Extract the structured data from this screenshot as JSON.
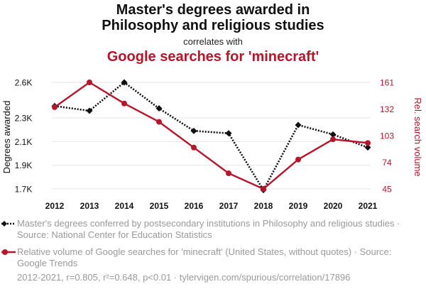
{
  "titles": {
    "line1": "Master's degrees awarded in",
    "line2": "Philosophy and religious studies",
    "connector": "correlates with",
    "line3": "Google searches for 'minecraft'"
  },
  "chart_data": {
    "type": "line",
    "x": [
      2012,
      2013,
      2014,
      2015,
      2016,
      2017,
      2018,
      2019,
      2020,
      2021
    ],
    "series": [
      {
        "name": "Master's degrees conferred by postsecondary institutions in Philosophy and religious studies · Source: National Center for Education Statistics",
        "axis": "left",
        "values": [
          2400,
          2360,
          2600,
          2380,
          2190,
          2170,
          1690,
          2240,
          2160,
          2050
        ],
        "color": "#111111",
        "style": "dotted",
        "marker": "diamond"
      },
      {
        "name": "Relative volume of Google searches for 'minecraft' (United States, without quotes) · Source: Google Trends",
        "axis": "right",
        "values": [
          134,
          161,
          138,
          118,
          90,
          62,
          45,
          77,
          99,
          95
        ],
        "color": "#b5162b",
        "style": "solid",
        "marker": "circle"
      }
    ],
    "left_axis": {
      "label": "Degrees awarded",
      "ticks": [
        1700,
        1900,
        2100,
        2300,
        2600
      ],
      "tick_labels": [
        "1.7K",
        "1.9K",
        "2.1K",
        "2.3K",
        "2.6K"
      ]
    },
    "right_axis": {
      "label": "Rel. search volume",
      "ticks": [
        45,
        74,
        103,
        132,
        161
      ],
      "tick_labels": [
        "45",
        "74",
        "103",
        "132",
        "161"
      ]
    },
    "x_tick_labels": [
      "2012",
      "2013",
      "2014",
      "2015",
      "2016",
      "2017",
      "2018",
      "2019",
      "2020",
      "2021"
    ],
    "grid": true
  },
  "legend": {
    "item1": "Master's degrees conferred by postsecondary institutions in Philosophy and religious studies · Source: National Center for Education Statistics",
    "item2": "Relative volume of Google searches for 'minecraft' (United States, without quotes) · Source: Google Trends"
  },
  "footer": "2012-2021, r=0.805, r²=0.648, p<0.01 · tylervigen.com/spurious/correlation/17896"
}
